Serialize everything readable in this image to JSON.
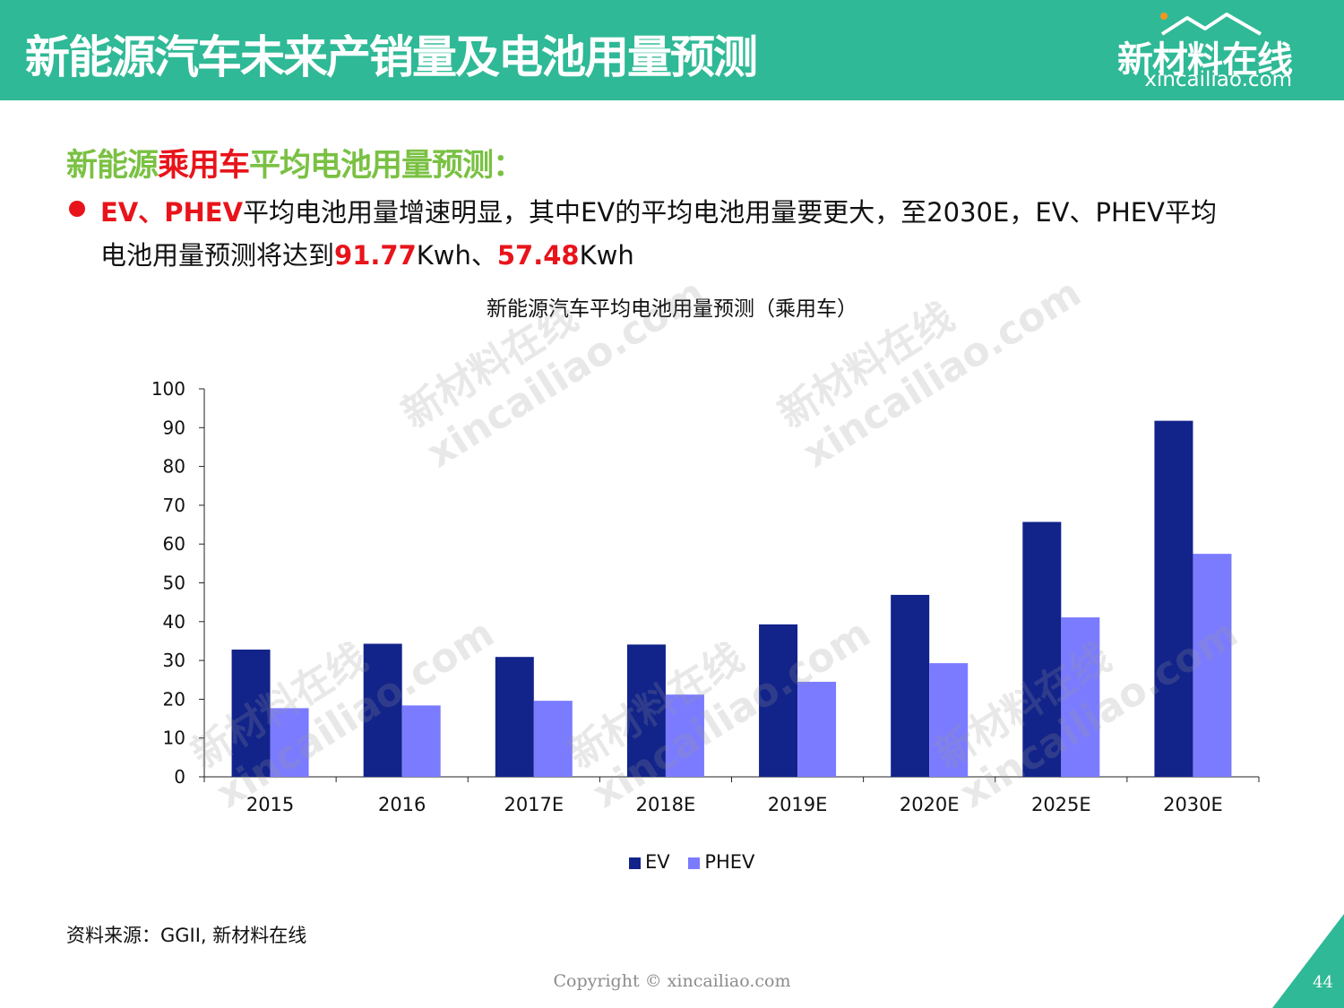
{
  "header": {
    "title": "新能源汽车未来产销量及电池用量预测",
    "logo_cn": "新材料在线",
    "logo_en": "xincailiao.com"
  },
  "subtitle": {
    "part1": "新能源",
    "part2": "乘用车",
    "part3": "平均电池用量预测："
  },
  "bullet": {
    "l1_a": "EV、PHEV",
    "l1_b": "平均电池用量增速明显，其中EV的平均电池用量要更大，至2030E，EV、PHEV平均",
    "l2_a": "电池用量预测将达到",
    "l2_b": "91.77",
    "l2_c": "Kwh、",
    "l2_d": "57.48",
    "l2_e": "Kwh"
  },
  "chart_data": {
    "type": "bar",
    "title": "新能源汽车平均电池用量预测（乘用车）",
    "categories": [
      "2015",
      "2016",
      "2017E",
      "2018E",
      "2019E",
      "2020E",
      "2025E",
      "2030E"
    ],
    "series": [
      {
        "name": "EV",
        "color": "#12238a",
        "values": [
          32.8,
          34.3,
          30.9,
          34.1,
          39.3,
          46.9,
          65.7,
          91.77
        ]
      },
      {
        "name": "PHEV",
        "color": "#7b7bff",
        "values": [
          17.7,
          18.4,
          19.6,
          21.2,
          24.5,
          29.3,
          41.1,
          57.48
        ]
      }
    ],
    "y_ticks": [
      "0",
      "10",
      "20",
      "30",
      "40",
      "50",
      "60",
      "70",
      "80",
      "90",
      "100"
    ],
    "ylim": [
      0,
      100
    ],
    "legend_position": "bottom"
  },
  "source": "资料来源：GGII, 新材料在线",
  "copyright": "Copyright © xincailiao.com",
  "page_number": "44",
  "colors": {
    "header_bg": "#2fb996",
    "accent_green": "#7ac143",
    "accent_red": "#e8141b"
  },
  "watermark": {
    "line1": "新材料在线",
    "line2": "xincailiao.com"
  }
}
